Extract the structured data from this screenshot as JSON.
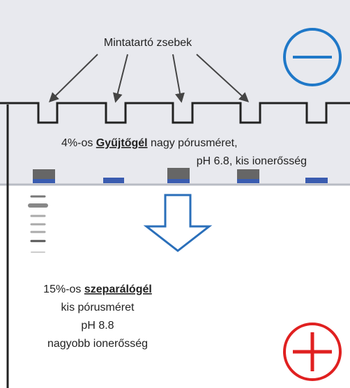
{
  "wells_label": "Mintatartó zsebek",
  "stacking_gel": {
    "prefix": "4%-os ",
    "name": "Gyűjtőgél",
    "line1_rest": " nagy pórusméret,",
    "line2": "pH 6.8, kis ionerősség"
  },
  "separating_gel": {
    "prefix": "15%-os ",
    "name": "szeparálógél",
    "lines": [
      "kis pórusméret",
      "pH 8.8",
      "nagyobb ionerősség"
    ]
  }
}
